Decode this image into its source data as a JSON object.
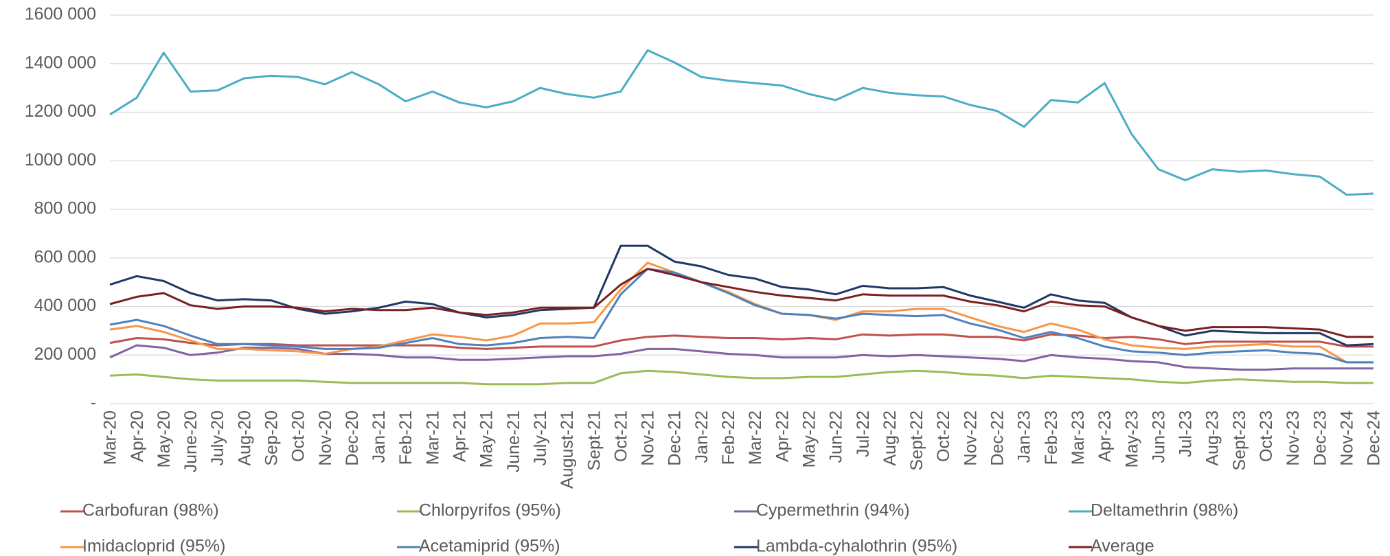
{
  "chart_data": {
    "type": "line",
    "categories": [
      "Mar-20",
      "Apr-20",
      "May-20",
      "June-20",
      "July-20",
      "Aug-20",
      "Sep-20",
      "Oct-20",
      "Nov-20",
      "Dec-20",
      "Jan-21",
      "Feb-21",
      "Mar-21",
      "Apr-21",
      "May-21",
      "June-21",
      "July-21",
      "August-21",
      "Sept-21",
      "Oct-21",
      "Nov-21",
      "Dec-21",
      "Jan-22",
      "Feb-22",
      "Mar-22",
      "Apr-22",
      "May-22",
      "Jun-22",
      "Jul-22",
      "Aug-22",
      "Sept-22",
      "Oct-22",
      "Nov-22",
      "Dec-22",
      "Jan-23",
      "Feb-23",
      "Mar-23",
      "Apr-23",
      "May-23",
      "Jun-23",
      "Jul-23",
      "Aug-23",
      "Sept-23",
      "Oct-23",
      "Nov-23",
      "Dec-23",
      "Nov-24",
      "Dec-24"
    ],
    "series": [
      {
        "name": "Carbofuran (98%)",
        "color": "#c0504d",
        "values": [
          250000,
          270000,
          265000,
          250000,
          240000,
          245000,
          245000,
          240000,
          240000,
          240000,
          240000,
          240000,
          240000,
          230000,
          225000,
          230000,
          235000,
          235000,
          235000,
          260000,
          275000,
          280000,
          275000,
          270000,
          270000,
          265000,
          270000,
          265000,
          285000,
          280000,
          285000,
          285000,
          275000,
          275000,
          260000,
          285000,
          280000,
          270000,
          275000,
          265000,
          245000,
          255000,
          255000,
          255000,
          255000,
          255000,
          235000,
          235000
        ]
      },
      {
        "name": "Chlorpyrifos (95%)",
        "color": "#9bbb59",
        "values": [
          115000,
          120000,
          110000,
          100000,
          95000,
          95000,
          95000,
          95000,
          90000,
          85000,
          85000,
          85000,
          85000,
          85000,
          80000,
          80000,
          80000,
          85000,
          85000,
          125000,
          135000,
          130000,
          120000,
          110000,
          105000,
          105000,
          110000,
          110000,
          120000,
          130000,
          135000,
          130000,
          120000,
          115000,
          105000,
          115000,
          110000,
          105000,
          100000,
          90000,
          85000,
          95000,
          100000,
          95000,
          90000,
          90000,
          85000,
          85000
        ]
      },
      {
        "name": "Cypermethrin (94%)",
        "color": "#8064a2",
        "values": [
          190000,
          240000,
          230000,
          200000,
          210000,
          230000,
          230000,
          225000,
          205000,
          205000,
          200000,
          190000,
          190000,
          180000,
          180000,
          185000,
          190000,
          195000,
          195000,
          205000,
          225000,
          225000,
          215000,
          205000,
          200000,
          190000,
          190000,
          190000,
          200000,
          195000,
          200000,
          195000,
          190000,
          185000,
          175000,
          200000,
          190000,
          185000,
          175000,
          170000,
          150000,
          145000,
          140000,
          140000,
          145000,
          145000,
          145000,
          145000
        ]
      },
      {
        "name": "Deltamethrin (98%)",
        "color": "#4bacc6",
        "values": [
          1190000,
          1260000,
          1445000,
          1285000,
          1290000,
          1340000,
          1350000,
          1345000,
          1315000,
          1365000,
          1315000,
          1245000,
          1285000,
          1240000,
          1220000,
          1245000,
          1300000,
          1275000,
          1260000,
          1285000,
          1455000,
          1405000,
          1345000,
          1330000,
          1320000,
          1310000,
          1275000,
          1250000,
          1300000,
          1280000,
          1270000,
          1265000,
          1230000,
          1205000,
          1140000,
          1250000,
          1240000,
          1320000,
          1110000,
          965000,
          920000,
          965000,
          955000,
          960000,
          945000,
          935000,
          860000,
          865000
        ]
      },
      {
        "name": "Imidacloprid (95%)",
        "color": "#f79646",
        "values": [
          305000,
          320000,
          295000,
          260000,
          225000,
          225000,
          220000,
          215000,
          205000,
          225000,
          235000,
          260000,
          285000,
          275000,
          260000,
          280000,
          330000,
          330000,
          335000,
          470000,
          580000,
          540000,
          500000,
          460000,
          410000,
          370000,
          365000,
          345000,
          380000,
          380000,
          390000,
          390000,
          355000,
          320000,
          295000,
          330000,
          305000,
          265000,
          240000,
          230000,
          225000,
          235000,
          240000,
          245000,
          235000,
          235000,
          170000,
          170000
        ]
      },
      {
        "name": "Acetamiprid (95%)",
        "color": "#4f81bd",
        "values": [
          325000,
          345000,
          320000,
          280000,
          245000,
          245000,
          240000,
          235000,
          225000,
          225000,
          230000,
          250000,
          270000,
          245000,
          240000,
          250000,
          270000,
          275000,
          270000,
          450000,
          555000,
          540000,
          500000,
          455000,
          405000,
          370000,
          365000,
          350000,
          370000,
          365000,
          360000,
          365000,
          330000,
          305000,
          270000,
          295000,
          270000,
          235000,
          215000,
          210000,
          200000,
          210000,
          215000,
          220000,
          210000,
          205000,
          170000,
          170000
        ]
      },
      {
        "name": "Lambda-cyhalothrin (95%)",
        "color": "#1f3864",
        "values": [
          490000,
          525000,
          505000,
          455000,
          425000,
          430000,
          425000,
          390000,
          370000,
          380000,
          395000,
          420000,
          410000,
          375000,
          355000,
          365000,
          385000,
          390000,
          395000,
          650000,
          650000,
          585000,
          565000,
          530000,
          515000,
          480000,
          470000,
          450000,
          485000,
          475000,
          475000,
          480000,
          445000,
          420000,
          395000,
          450000,
          425000,
          415000,
          355000,
          320000,
          280000,
          300000,
          295000,
          290000,
          290000,
          290000,
          240000,
          245000
        ]
      },
      {
        "name": "Average",
        "color": "#7b2020",
        "values": [
          410000,
          440000,
          455000,
          405000,
          390000,
          400000,
          400000,
          395000,
          380000,
          390000,
          385000,
          385000,
          395000,
          375000,
          365000,
          375000,
          395000,
          395000,
          395000,
          490000,
          555000,
          530000,
          500000,
          480000,
          460000,
          445000,
          435000,
          425000,
          450000,
          445000,
          445000,
          445000,
          420000,
          405000,
          380000,
          420000,
          405000,
          400000,
          355000,
          320000,
          300000,
          315000,
          315000,
          315000,
          310000,
          305000,
          275000,
          275000
        ]
      }
    ],
    "ylim": [
      0,
      1600000
    ],
    "yticks": [
      {
        "value": 0,
        "label": "-"
      },
      {
        "value": 200000,
        "label": "200 000"
      },
      {
        "value": 400000,
        "label": "400 000"
      },
      {
        "value": 600000,
        "label": "600 000"
      },
      {
        "value": 800000,
        "label": "800 000"
      },
      {
        "value": 1000000,
        "label": "1000 000"
      },
      {
        "value": 1200000,
        "label": "1200 000"
      },
      {
        "value": 1400000,
        "label": "1400 000"
      },
      {
        "value": 1600000,
        "label": "1600 000"
      }
    ],
    "grid": true,
    "legend": "bottom"
  }
}
